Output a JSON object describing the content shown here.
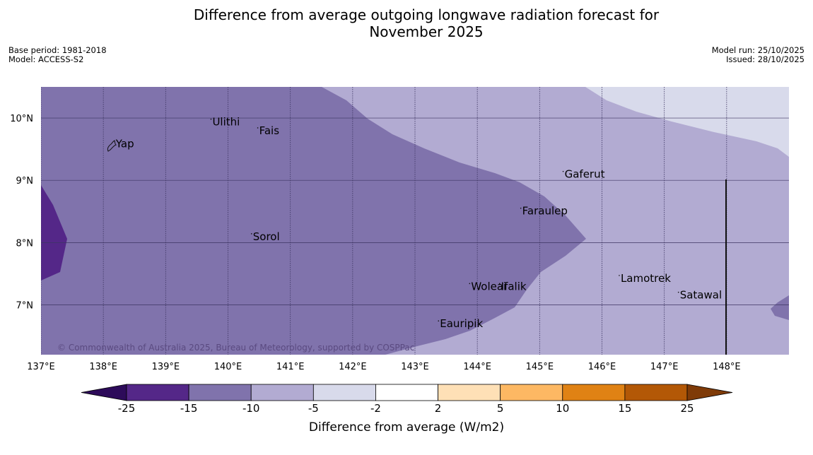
{
  "title_line1": "Difference from average outgoing longwave radiation forecast for",
  "title_line2": "November 2025",
  "base_period": "Base period: 1981-2018",
  "model": "Model: ACCESS-S2",
  "model_run": "Model run: 25/10/2025",
  "issued": "Issued: 28/10/2025",
  "copyright": "© Commonwealth of Australia 2025, Bureau of Meteorology, supported by COSPPac",
  "map": {
    "lon_ticks": [
      {
        "value": 137,
        "label": "137°E"
      },
      {
        "value": 138,
        "label": "138°E"
      },
      {
        "value": 139,
        "label": "139°E"
      },
      {
        "value": 140,
        "label": "140°E"
      },
      {
        "value": 141,
        "label": "141°E"
      },
      {
        "value": 142,
        "label": "142°E"
      },
      {
        "value": 143,
        "label": "143°E"
      },
      {
        "value": 144,
        "label": "144°E"
      },
      {
        "value": 145,
        "label": "145°E"
      },
      {
        "value": 146,
        "label": "146°E"
      },
      {
        "value": 147,
        "label": "147°E"
      },
      {
        "value": 148,
        "label": "148°E"
      }
    ],
    "lat_ticks": [
      {
        "value": 10,
        "label": "10°N"
      },
      {
        "value": 9,
        "label": "9°N"
      },
      {
        "value": 8,
        "label": "8°N"
      },
      {
        "value": 7,
        "label": "7°N"
      }
    ],
    "lon_range": [
      137,
      149
    ],
    "lat_range": [
      6.2,
      10.5
    ],
    "places": [
      {
        "name": "Yap",
        "lon": 138.2,
        "lat": 9.53
      },
      {
        "name": "Ulithi",
        "lon": 139.75,
        "lat": 9.88
      },
      {
        "name": "Fais",
        "lon": 140.5,
        "lat": 9.74
      },
      {
        "name": "Gaferut",
        "lon": 145.4,
        "lat": 9.04
      },
      {
        "name": "Faraulep",
        "lon": 144.72,
        "lat": 8.45
      },
      {
        "name": "Sorol",
        "lon": 140.4,
        "lat": 8.04
      },
      {
        "name": "Lamotrek",
        "lon": 146.3,
        "lat": 7.37
      },
      {
        "name": "Satawal",
        "lon": 147.25,
        "lat": 7.1
      },
      {
        "name": "Woleai",
        "lon": 143.9,
        "lat": 7.24
      },
      {
        "name": "Ifalik",
        "lon": 144.38,
        "lat": 7.24
      },
      {
        "name": "Eauripik",
        "lon": 143.4,
        "lat": 6.64
      }
    ]
  },
  "colorbar": {
    "label": "Difference from average (W/m2)",
    "tick_labels": [
      "-25",
      "-15",
      "-10",
      "-5",
      "-2",
      "2",
      "5",
      "10",
      "15",
      "25"
    ],
    "colors": [
      "#2d0b5a",
      "#542788",
      "#8073ac",
      "#b2abd2",
      "#d8daeb",
      "#ffffff",
      "#fee0b6",
      "#fdb863",
      "#e08214",
      "#b35806",
      "#7f3b08"
    ]
  }
}
